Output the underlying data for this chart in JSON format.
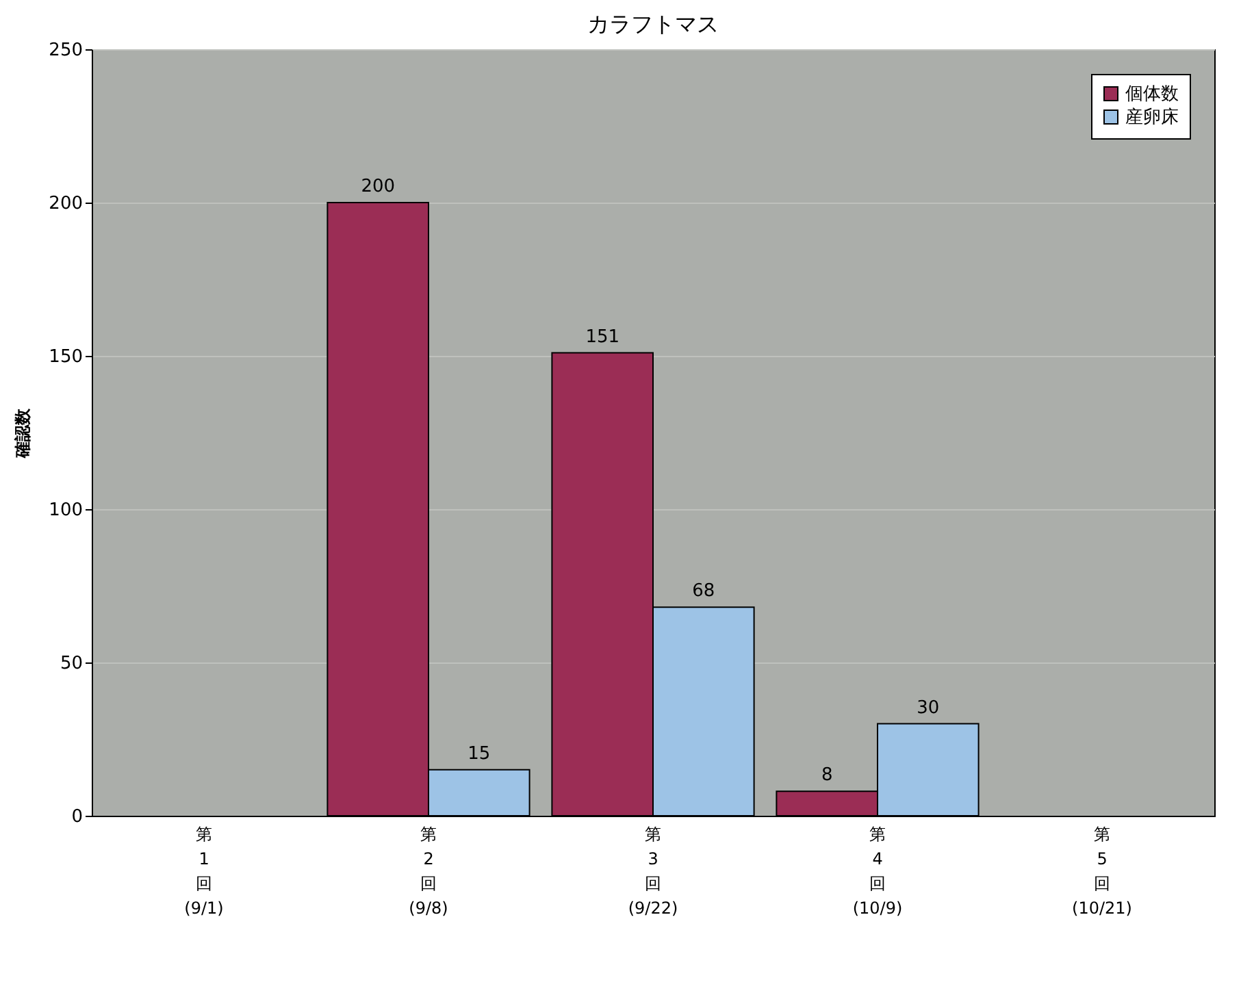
{
  "chart_data": {
    "type": "bar",
    "title": "カラフトマス",
    "ylabel": "確認数",
    "categories": [
      "第\n1\n回\n(9/1)",
      "第\n2\n回\n(9/8)",
      "第\n3\n回\n(9/22)",
      "第\n4\n回\n(10/9)",
      "第\n5\n回\n(10/21)"
    ],
    "series": [
      {
        "name": "個体数",
        "color": "#9b2d55",
        "values": [
          null,
          200,
          151,
          8,
          null
        ]
      },
      {
        "name": "産卵床",
        "color": "#9dc3e6",
        "values": [
          null,
          15,
          68,
          30,
          null
        ]
      }
    ],
    "ylim": [
      0,
      250
    ],
    "yticks": [
      0,
      50,
      100,
      150,
      200,
      250
    ],
    "grid": "y",
    "legend": "top right",
    "data_labels": true
  }
}
